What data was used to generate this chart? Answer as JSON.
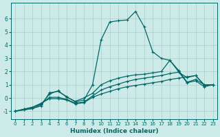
{
  "xlabel": "Humidex (Indice chaleur)",
  "bg_color": "#cceae8",
  "line_color": "#006666",
  "grid_color": "#aacccc",
  "x_ticks": [
    0,
    1,
    2,
    3,
    4,
    5,
    6,
    7,
    8,
    9,
    10,
    11,
    12,
    13,
    14,
    15,
    16,
    17,
    18,
    19,
    20,
    21,
    22,
    23
  ],
  "y_ticks": [
    -1,
    0,
    1,
    2,
    3,
    4,
    5,
    6
  ],
  "xlim": [
    -0.5,
    23.5
  ],
  "ylim": [
    -1.6,
    7.2
  ],
  "series": [
    [
      -1.0,
      -0.9,
      -0.8,
      -0.6,
      0.4,
      0.5,
      0.1,
      -0.3,
      -0.15,
      1.0,
      4.4,
      5.75,
      5.85,
      5.9,
      6.55,
      5.4,
      3.5,
      3.0,
      2.85,
      2.1,
      1.2,
      1.4,
      1.0,
      1.0
    ],
    [
      -1.0,
      -0.9,
      -0.8,
      -0.5,
      0.3,
      0.55,
      0.05,
      -0.25,
      0.0,
      0.35,
      1.0,
      1.3,
      1.5,
      1.65,
      1.75,
      1.8,
      1.9,
      2.0,
      2.85,
      2.0,
      1.15,
      1.3,
      0.85,
      1.0
    ],
    [
      -1.0,
      -0.85,
      -0.7,
      -0.45,
      0.05,
      0.05,
      -0.1,
      -0.4,
      -0.3,
      0.15,
      0.6,
      0.85,
      1.05,
      1.25,
      1.4,
      1.5,
      1.6,
      1.7,
      1.85,
      1.95,
      1.55,
      1.7,
      0.95,
      1.0
    ],
    [
      -1.0,
      -0.85,
      -0.7,
      -0.4,
      -0.05,
      -0.05,
      -0.15,
      -0.45,
      -0.35,
      0.05,
      0.3,
      0.5,
      0.7,
      0.85,
      0.95,
      1.05,
      1.15,
      1.25,
      1.4,
      1.5,
      1.6,
      1.7,
      1.0,
      1.0
    ]
  ]
}
